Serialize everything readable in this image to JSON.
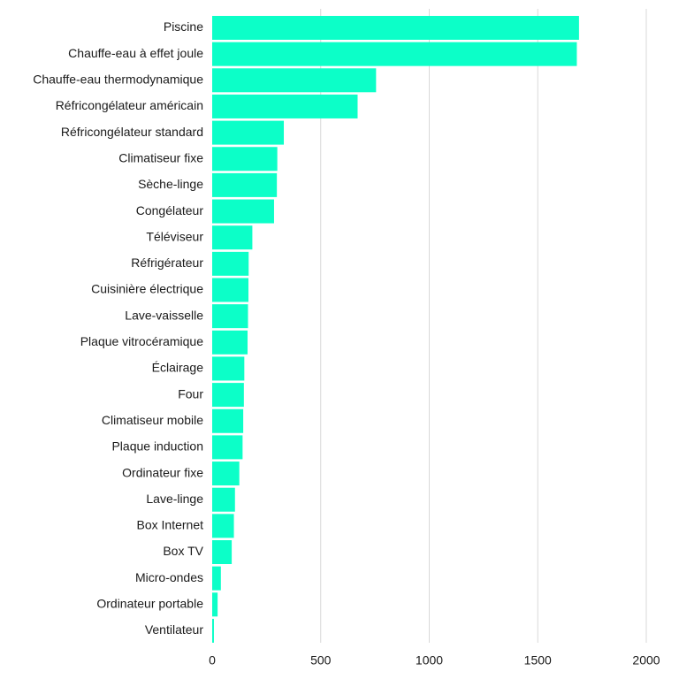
{
  "chart_data": {
    "type": "bar",
    "orientation": "horizontal",
    "title": "",
    "xlabel": "",
    "ylabel": "",
    "xlim": [
      0,
      2000
    ],
    "grid": true,
    "bar_color": "#0cffc8",
    "ticks": [
      "0",
      "500",
      "1000",
      "1500",
      "2000"
    ],
    "tick_values": [
      0,
      500,
      1000,
      1500,
      2000
    ],
    "categories": [
      "Piscine",
      "Chauffe-eau à effet joule",
      "Chauffe-eau thermodynamique",
      "Réfricongélateur américain",
      "Réfricongélateur standard",
      "Climatiseur fixe",
      "Sèche-linge",
      "Congélateur",
      "Téléviseur",
      "Réfrigérateur",
      "Cuisinière électrique",
      "Lave-vaisselle",
      "Plaque vitrocéramique",
      "Éclairage",
      "Four",
      "Climatiseur mobile",
      "Plaque induction",
      "Ordinateur fixe",
      "Lave-linge",
      "Box Internet",
      "Box TV",
      "Micro-ondes",
      "Ordinateur portable",
      "Ventilateur"
    ],
    "values": [
      1690,
      1680,
      755,
      670,
      330,
      300,
      298,
      285,
      185,
      168,
      167,
      165,
      163,
      148,
      146,
      143,
      140,
      125,
      105,
      100,
      90,
      40,
      25,
      8
    ]
  }
}
